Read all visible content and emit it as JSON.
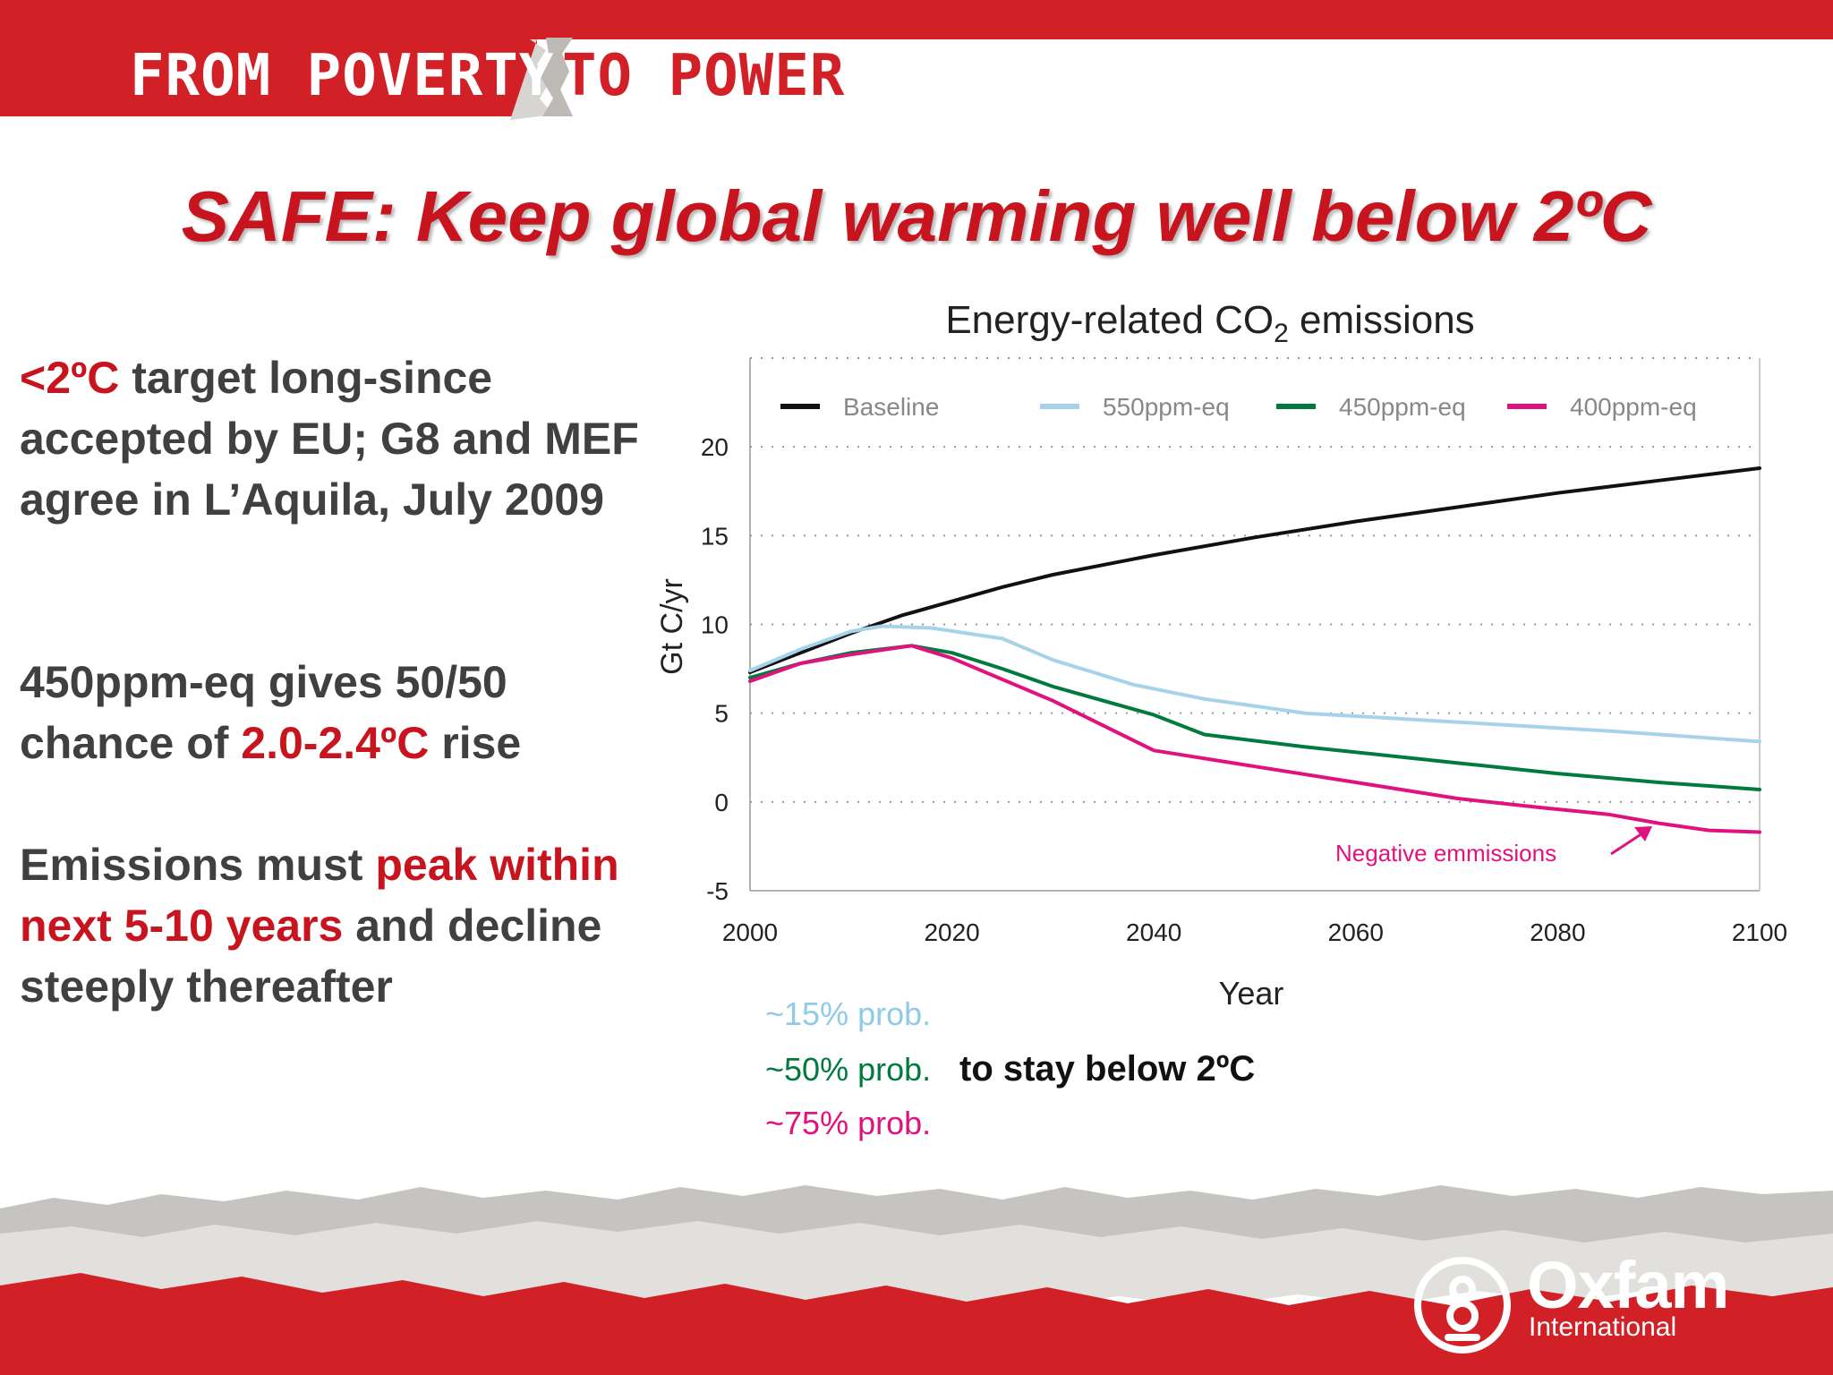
{
  "banner": {
    "left_text": "FROM POVERTY",
    "right_text": "TO POWER",
    "color": "#d22027"
  },
  "title": "SAFE: Keep global warming well below 2ºC",
  "text": {
    "p1_red": "<2ºC",
    "p1_rest": " target long-since accepted by EU; G8 and MEF agree in L’Aquila, July 2009",
    "p2_a": "450ppm-eq gives 50/50 chance of ",
    "p2_red": "2.0-2.4ºC",
    "p2_b": " rise",
    "p3_a": "Emissions must ",
    "p3_red": "peak within next 5-10 years",
    "p3_b": " and decline steeply thereafter"
  },
  "probabilities": {
    "p15": "~15% prob.",
    "p50": "~50% prob.",
    "p75": "~75% prob.",
    "suffix": "to stay below 2ºC"
  },
  "logo": {
    "name": "Oxfam",
    "sub": "International"
  },
  "chart_data": {
    "type": "line",
    "title_main": "Energy-related CO",
    "title_sub": "2",
    "title_end": " emissions",
    "xlabel": "Year",
    "ylabel": "Gt C/yr",
    "xlim": [
      2000,
      2100
    ],
    "ylim": [
      -5,
      25
    ],
    "xticks": [
      2000,
      2020,
      2040,
      2060,
      2080,
      2100
    ],
    "yticks": [
      -5,
      0,
      5,
      10,
      15,
      20
    ],
    "grid": "horizontal dotted",
    "legend_position": "top",
    "annotation": "Negative emmissions",
    "series": [
      {
        "name": "Baseline",
        "color": "#111111",
        "x": [
          2000,
          2005,
          2010,
          2015,
          2020,
          2025,
          2030,
          2040,
          2050,
          2060,
          2070,
          2080,
          2090,
          2100
        ],
        "y": [
          7.3,
          8.4,
          9.5,
          10.5,
          11.3,
          12.1,
          12.8,
          13.9,
          14.9,
          15.8,
          16.6,
          17.4,
          18.1,
          18.8
        ]
      },
      {
        "name": "550ppm-eq",
        "color": "#a6d3ea",
        "x": [
          2000,
          2005,
          2010,
          2013,
          2018,
          2025,
          2030,
          2038,
          2045,
          2055,
          2070,
          2085,
          2100
        ],
        "y": [
          7.4,
          8.6,
          9.6,
          9.9,
          9.8,
          9.2,
          8.0,
          6.6,
          5.8,
          5.0,
          4.5,
          4.0,
          3.4
        ]
      },
      {
        "name": "450ppm-eq",
        "color": "#007a3d",
        "x": [
          2000,
          2005,
          2010,
          2016,
          2020,
          2025,
          2030,
          2040,
          2045,
          2055,
          2070,
          2080,
          2090,
          2100
        ],
        "y": [
          7.0,
          7.8,
          8.4,
          8.8,
          8.4,
          7.5,
          6.5,
          4.9,
          3.8,
          3.1,
          2.2,
          1.6,
          1.1,
          0.7
        ]
      },
      {
        "name": "400ppm-eq",
        "color": "#e0137e",
        "x": [
          2000,
          2005,
          2010,
          2016,
          2020,
          2030,
          2040,
          2050,
          2060,
          2070,
          2078,
          2085,
          2090,
          2095,
          2100
        ],
        "y": [
          6.8,
          7.8,
          8.3,
          8.8,
          8.1,
          5.7,
          2.9,
          2.0,
          1.1,
          0.2,
          -0.3,
          -0.7,
          -1.2,
          -1.6,
          -1.7
        ]
      }
    ]
  }
}
